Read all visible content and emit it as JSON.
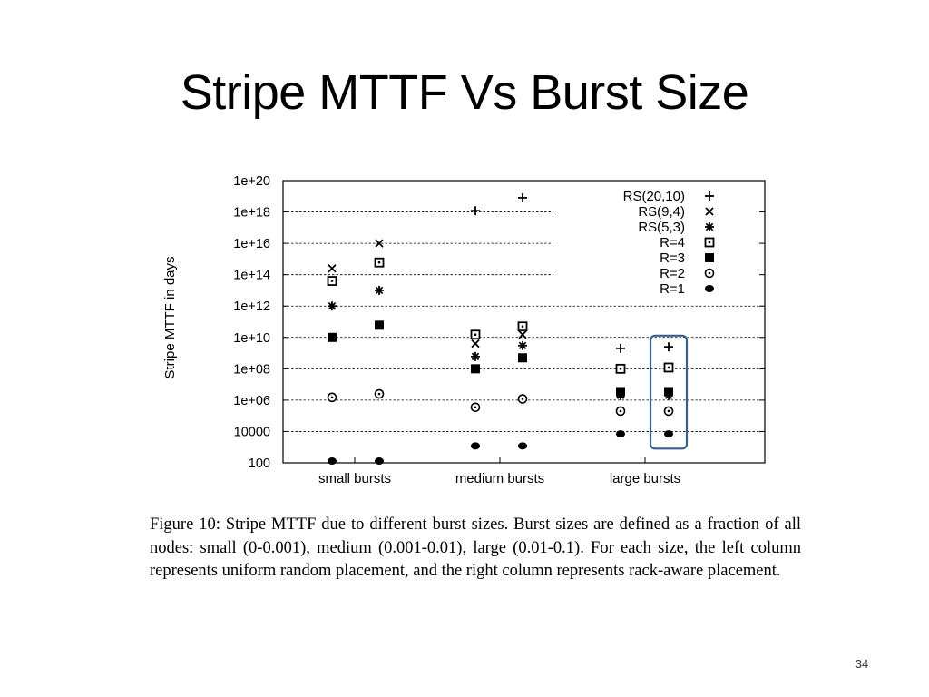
{
  "slide": {
    "title": "Stripe MTTF Vs Burst Size",
    "page_number": "34"
  },
  "figure": {
    "caption": "Figure 10: Stripe MTTF due to different burst sizes. Burst sizes are defined as a fraction of all nodes: small (0-0.001), medium (0.001-0.01), large (0.01-0.1). For each size, the left column represents uniform random placement, and the right column represents rack-aware placement."
  },
  "highlight_color": "#3a5f8a",
  "chart_data": {
    "type": "scatter",
    "ylabel": "Stripe MTTF in days",
    "xlabel": "",
    "yscale": "log",
    "ylim": [
      100,
      1e+20
    ],
    "y_ticks": [
      {
        "value": 100,
        "label": "100"
      },
      {
        "value": 10000,
        "label": "10000"
      },
      {
        "value": 1000000.0,
        "label": "1e+06"
      },
      {
        "value": 100000000.0,
        "label": "1e+08"
      },
      {
        "value": 10000000000.0,
        "label": "1e+10"
      },
      {
        "value": 1000000000000.0,
        "label": "1e+12"
      },
      {
        "value": 100000000000000.0,
        "label": "1e+14"
      },
      {
        "value": 1e+16,
        "label": "1e+16"
      },
      {
        "value": 1e+18,
        "label": "1e+18"
      },
      {
        "value": 1e+20,
        "label": "1e+20"
      }
    ],
    "categories": [
      "small bursts",
      "medium bursts",
      "large bursts"
    ],
    "columns": [
      "small bursts / uniform random placement",
      "small bursts / rack-aware placement",
      "medium bursts / uniform random placement",
      "medium bursts / rack-aware placement",
      "large bursts / uniform random placement",
      "large bursts / rack-aware placement"
    ],
    "grid": "horizontal dashed",
    "legend_position": "top-right",
    "highlighted_column": 5,
    "series": [
      {
        "name": "RS(20,10)",
        "marker": "plus",
        "values": [
          null,
          null,
          1.2e+18,
          8e+18,
          2000000000.0,
          2500000000.0
        ]
      },
      {
        "name": "RS(9,4)",
        "marker": "cross",
        "values": [
          250000000000000.0,
          1e+16,
          4000000000.0,
          15000000000.0,
          2500000.0,
          3000000.0
        ]
      },
      {
        "name": "RS(5,3)",
        "marker": "asterisk",
        "values": [
          1000000000000.0,
          10000000000000.0,
          600000000.0,
          3000000000.0,
          2000000.0,
          2000000.0
        ]
      },
      {
        "name": "R=4",
        "marker": "square-dot",
        "values": [
          40000000000000.0,
          600000000000000.0,
          15000000000.0,
          50000000000.0,
          100000000.0,
          120000000.0
        ]
      },
      {
        "name": "R=3",
        "marker": "filled-square",
        "values": [
          10000000000.0,
          60000000000.0,
          100000000.0,
          500000000.0,
          3500000.0,
          3500000.0
        ]
      },
      {
        "name": "R=2",
        "marker": "circle-dot",
        "values": [
          1500000.0,
          2500000.0,
          350000.0,
          1200000.0,
          200000.0,
          200000.0
        ]
      },
      {
        "name": "R=1",
        "marker": "filled-circle",
        "values": [
          130,
          130,
          1200,
          1200,
          7000,
          7000
        ]
      }
    ]
  }
}
